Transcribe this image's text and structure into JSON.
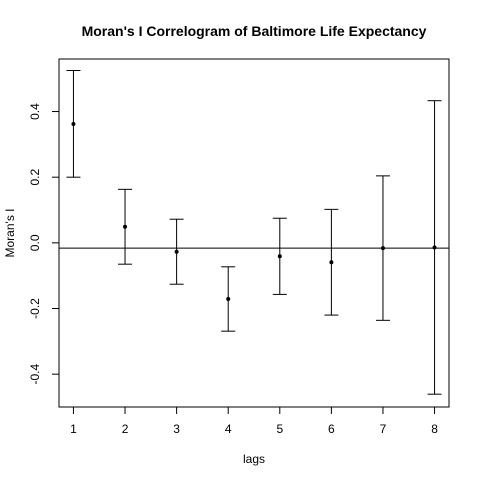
{
  "chart_data": {
    "type": "scatter",
    "title": "Moran's I Correlogram of Baltimore Life Expectancy",
    "xlabel": "lags",
    "ylabel": "Moran's I",
    "x_ticks": [
      "1",
      "2",
      "3",
      "4",
      "5",
      "6",
      "7",
      "8"
    ],
    "y_ticks": [
      "-0.4",
      "-0.2",
      "0.0",
      "0.2",
      "0.4"
    ],
    "xlim": [
      0.72,
      8.28
    ],
    "ylim": [
      -0.5,
      0.56
    ],
    "reference_line": -0.016,
    "grid": false,
    "legend": "none",
    "points": [
      {
        "lag": 1,
        "estimate": 0.362,
        "lower": 0.2,
        "upper": 0.525
      },
      {
        "lag": 2,
        "estimate": 0.049,
        "lower": -0.065,
        "upper": 0.163
      },
      {
        "lag": 3,
        "estimate": -0.027,
        "lower": -0.126,
        "upper": 0.072
      },
      {
        "lag": 4,
        "estimate": -0.171,
        "lower": -0.269,
        "upper": -0.073
      },
      {
        "lag": 5,
        "estimate": -0.041,
        "lower": -0.157,
        "upper": 0.075
      },
      {
        "lag": 6,
        "estimate": -0.059,
        "lower": -0.22,
        "upper": 0.102
      },
      {
        "lag": 7,
        "estimate": -0.016,
        "lower": -0.236,
        "upper": 0.204
      },
      {
        "lag": 8,
        "estimate": -0.014,
        "lower": -0.461,
        "upper": 0.433
      }
    ]
  }
}
